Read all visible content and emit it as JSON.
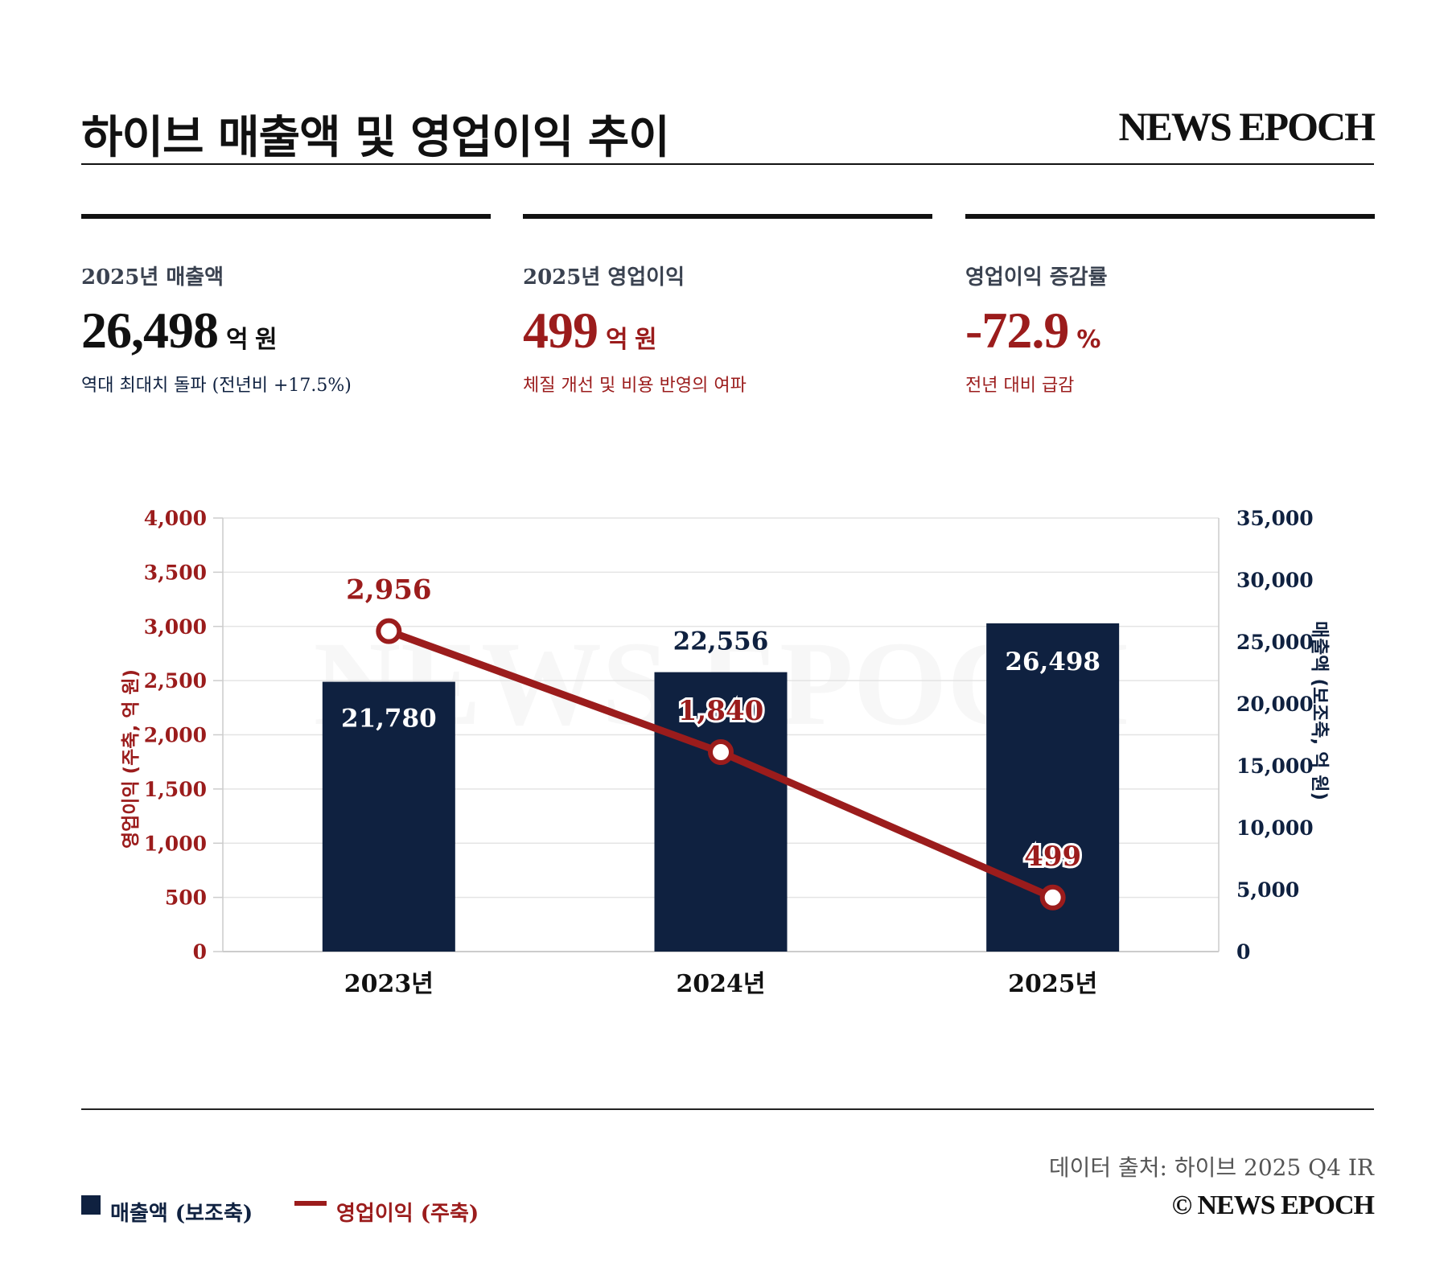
{
  "header": {
    "title": "하이브 매출액 및 영업이익 추이",
    "brand": "NEWS EPOCH"
  },
  "stats": [
    {
      "label": "2025년 매출액",
      "value": "26,498",
      "unit": "억 원",
      "sub": "역대 최대치 돌파 (전년비 +17.5%)"
    },
    {
      "label": "2025년 영업이익",
      "value": "499",
      "unit": "억 원",
      "sub": "체질 개선 및 비용 반영의 여파"
    },
    {
      "label": "영업이익 증감률",
      "value": "-72.9",
      "unit": "%",
      "sub": "전년 대비 급감"
    }
  ],
  "chart_data": {
    "type": "bar",
    "categories": [
      "2023년",
      "2024년",
      "2025년"
    ],
    "series": [
      {
        "name": "매출액 (보조축)",
        "type": "bar",
        "axis": "right",
        "values": [
          21780,
          22556,
          26498
        ],
        "labels": [
          "21,780",
          "22,556",
          "26,498"
        ],
        "color": "#0f2140"
      },
      {
        "name": "영업이익 (주축)",
        "type": "line",
        "axis": "left",
        "values": [
          2956,
          1840,
          499
        ],
        "labels": [
          "2,956",
          "1,840",
          "499"
        ],
        "color": "#9b1c1c"
      }
    ],
    "left_axis": {
      "label": "영업이익 (주축, 억 원)",
      "ylim": [
        0,
        4000
      ],
      "ticks": [
        "0",
        "500",
        "1,000",
        "1,500",
        "2,000",
        "2,500",
        "3,000",
        "3,500",
        "4,000"
      ]
    },
    "right_axis": {
      "label": "매출액 (보조축, 억 원)",
      "ylim": [
        0,
        35000
      ],
      "ticks": [
        "0",
        "5,000",
        "10,000",
        "15,000",
        "20,000",
        "25,000",
        "30,000",
        "35,000"
      ]
    },
    "watermark": "NEWS EPOCH",
    "grid": true,
    "legend": "bottom-left"
  },
  "footer": {
    "source": "데이터 출처: 하이브 2025 Q4 IR",
    "copyright": "© NEWS EPOCH"
  }
}
